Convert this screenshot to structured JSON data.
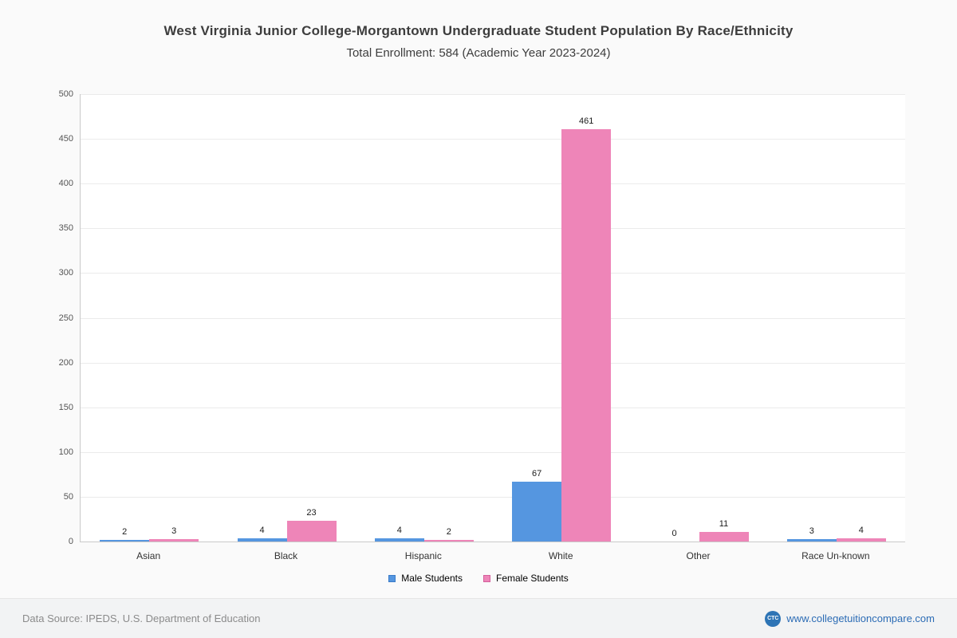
{
  "chart_data": {
    "type": "bar",
    "title": "West Virginia Junior College-Morgantown Undergraduate Student Population By Race/Ethnicity",
    "subtitle": "Total Enrollment: 584 (Academic Year 2023-2024)",
    "categories": [
      "Asian",
      "Black",
      "Hispanic",
      "White",
      "Other",
      "Race Un-known"
    ],
    "series": [
      {
        "name": "Male Students",
        "color": "#5596e0",
        "border_color": "#3a7bc8",
        "values": [
          2,
          4,
          4,
          67,
          0,
          3
        ]
      },
      {
        "name": "Female Students",
        "color": "#ee85b8",
        "border_color": "#d45f9b",
        "values": [
          3,
          23,
          2,
          461,
          11,
          4
        ]
      }
    ],
    "ylim": [
      0,
      500
    ],
    "ytick_step": 50,
    "grid": true,
    "legend_position": "bottom",
    "value_labels": true
  },
  "footer": {
    "source": "Data Source: IPEDS, U.S. Department of Education",
    "logo_text": "CTC",
    "website": "www.collegetuitioncompare.com"
  }
}
